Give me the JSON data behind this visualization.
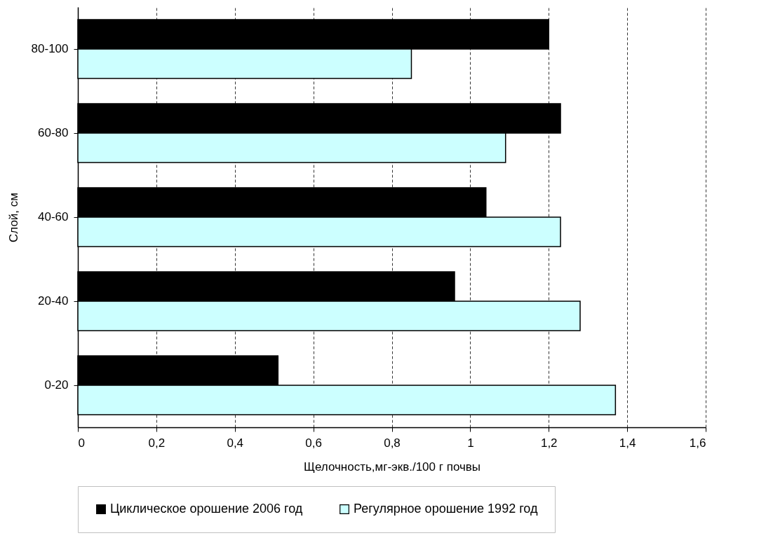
{
  "chart_data": {
    "type": "bar",
    "orientation": "horizontal",
    "xlabel": "Щелочность,мг-экв./100 г почвы",
    "ylabel": "Слой, см",
    "categories": [
      "80-100",
      "60-80",
      "40-60",
      "20-40",
      "0-20"
    ],
    "series": [
      {
        "name": "Циклическое орошение 2006 год",
        "color": "#000000",
        "values": [
          1.2,
          1.23,
          1.04,
          0.96,
          0.51
        ]
      },
      {
        "name": "Регулярное орошение 1992 год",
        "color": "#ccffff",
        "values": [
          0.85,
          1.09,
          1.23,
          1.28,
          1.37
        ]
      }
    ],
    "xlim": [
      0,
      1.6
    ],
    "xticks": [
      0,
      {
        "value": 0.2,
        "label": "0,2"
      },
      {
        "value": 0.4,
        "label": "0,4"
      },
      {
        "value": 0.6,
        "label": "0,6"
      },
      {
        "value": 0.8,
        "label": "0,8"
      },
      1,
      {
        "value": 1.2,
        "label": "1,2"
      },
      {
        "value": 1.4,
        "label": "1,4"
      },
      {
        "value": 1.6,
        "label": "1,6"
      }
    ],
    "grid": "x",
    "legend": "bottom"
  }
}
